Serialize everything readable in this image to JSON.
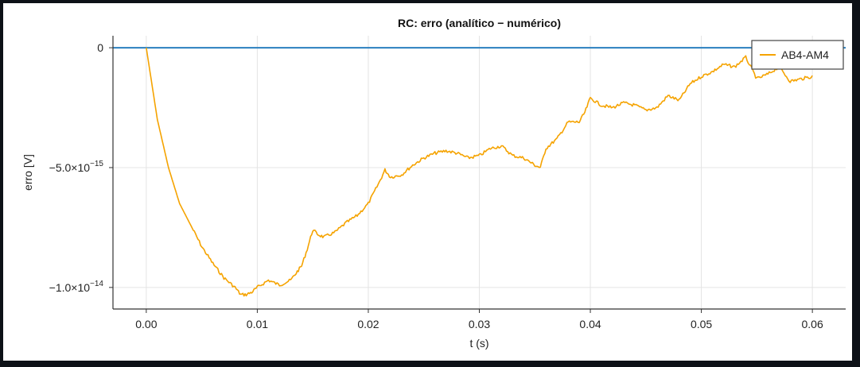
{
  "chart_data": {
    "type": "line",
    "title": "RC: erro (analítico − numérico)",
    "xlabel": "t (s)",
    "ylabel": "erro [V]",
    "xlim": [
      -0.003,
      0.063
    ],
    "ylim": [
      -1.09e-14,
      5e-16
    ],
    "xticks": [
      0.0,
      0.01,
      0.02,
      0.03,
      0.04,
      0.05,
      0.06
    ],
    "xtick_labels": [
      "0.00",
      "0.01",
      "0.02",
      "0.03",
      "0.04",
      "0.05",
      "0.06"
    ],
    "yticks": [
      0,
      -5e-15,
      -1e-14
    ],
    "ytick_labels": [
      {
        "mantissa": "0",
        "exp": ""
      },
      {
        "mantissa": "−5.0×10",
        "exp": "−15"
      },
      {
        "mantissa": "−1.0×10",
        "exp": "−14"
      }
    ],
    "grid": true,
    "reference_line": {
      "y": 0,
      "color": "#2a7fbf"
    },
    "legend": {
      "position": "top-right",
      "entries": [
        "AB4-AM4"
      ]
    },
    "series": [
      {
        "name": "AB4-AM4",
        "color": "#f5a300",
        "x": [
          0.0,
          0.001,
          0.002,
          0.003,
          0.004,
          0.005,
          0.006,
          0.007,
          0.008,
          0.0085,
          0.009,
          0.0095,
          0.01,
          0.011,
          0.012,
          0.013,
          0.0135,
          0.014,
          0.0145,
          0.015,
          0.0155,
          0.016,
          0.017,
          0.018,
          0.019,
          0.02,
          0.021,
          0.0215,
          0.022,
          0.023,
          0.024,
          0.025,
          0.026,
          0.027,
          0.028,
          0.029,
          0.03,
          0.031,
          0.032,
          0.033,
          0.034,
          0.035,
          0.0355,
          0.036,
          0.037,
          0.038,
          0.039,
          0.0395,
          0.04,
          0.041,
          0.042,
          0.043,
          0.044,
          0.045,
          0.046,
          0.047,
          0.048,
          0.049,
          0.05,
          0.051,
          0.052,
          0.053,
          0.054,
          0.055,
          0.056,
          0.057,
          0.058,
          0.059,
          0.06
        ],
        "y": [
          0,
          -3e-15,
          -5e-15,
          -6.5e-15,
          -7.4e-15,
          -8.3e-15,
          -9e-15,
          -9.6e-15,
          -1e-14,
          -1.03e-14,
          -1.03e-14,
          -1.02e-14,
          -1e-14,
          -9.7e-15,
          -9.9e-15,
          -9.7e-15,
          -9.4e-15,
          -9.1e-15,
          -8.4e-15,
          -7.6e-15,
          -7.8e-15,
          -7.9e-15,
          -7.7e-15,
          -7.3e-15,
          -7e-15,
          -6.5e-15,
          -5.6e-15,
          -5.1e-15,
          -5.4e-15,
          -5.3e-15,
          -4.9e-15,
          -4.6e-15,
          -4.4e-15,
          -4.3e-15,
          -4.4e-15,
          -4.6e-15,
          -4.5e-15,
          -4.2e-15,
          -4.1e-15,
          -4.5e-15,
          -4.6e-15,
          -4.9e-15,
          -5e-15,
          -4.2e-15,
          -3.8e-15,
          -3.1e-15,
          -3.1e-15,
          -2.7e-15,
          -2.1e-15,
          -2.4e-15,
          -2.5e-15,
          -2.3e-15,
          -2.4e-15,
          -2.6e-15,
          -2.5e-15,
          -2e-15,
          -2.2e-15,
          -1.5e-15,
          -1.2e-15,
          -1e-15,
          -7e-16,
          -8e-16,
          -4e-16,
          -1.3e-15,
          -1.1e-15,
          -8e-16,
          -1.4e-15,
          -1.3e-15,
          -1.2e-15
        ]
      }
    ]
  }
}
